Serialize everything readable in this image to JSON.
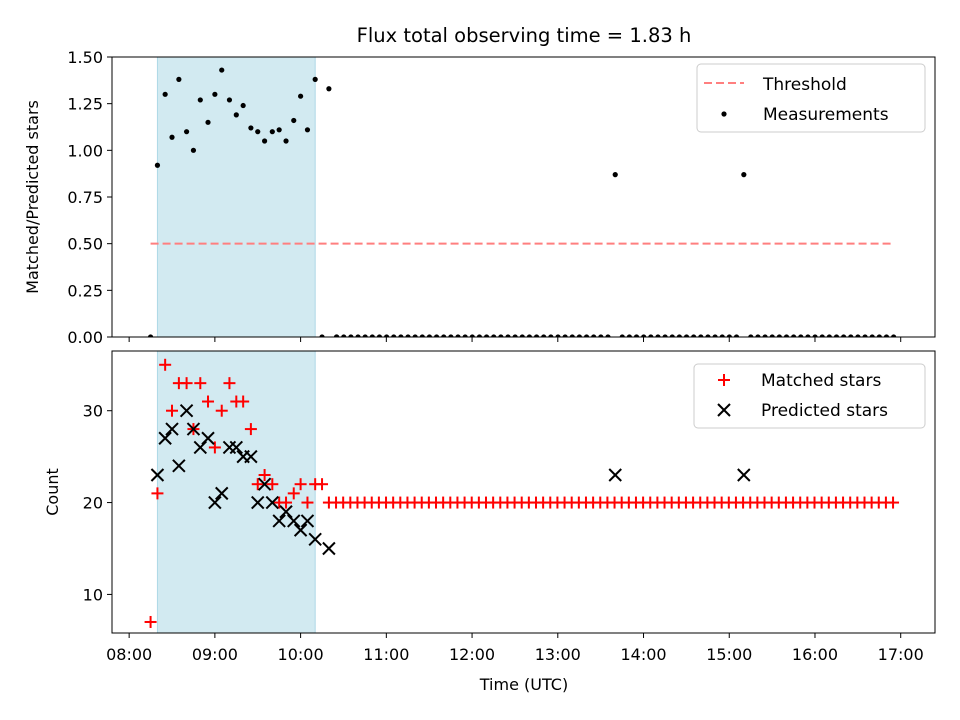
{
  "chart_data": [
    {
      "type": "scatter",
      "title": "Flux total observing time = 1.83 h",
      "ylabel": "Matched/Predicted stars",
      "xlabel": "",
      "xlim": [
        7.8,
        17.4
      ],
      "ylim": [
        0,
        1.5
      ],
      "yticks": [
        0,
        0.25,
        0.5,
        0.75,
        1.0,
        1.25,
        1.5
      ],
      "ytick_labels": [
        "0.00",
        "0.25",
        "0.50",
        "0.75",
        "1.00",
        "1.25",
        "1.50"
      ],
      "highlight_span": [
        8.33,
        10.17
      ],
      "highlight_color": "#add8e6",
      "legend_position": "upper right",
      "threshold": {
        "name": "Threshold",
        "y": 0.5,
        "x_range": [
          8.25,
          16.92
        ],
        "color": "#ff7f7f",
        "style": "dashed"
      },
      "series": [
        {
          "name": "Measurements",
          "marker": "dot",
          "color": "#000000",
          "x": [
            8.25,
            8.33,
            8.42,
            8.5,
            8.58,
            8.67,
            8.75,
            8.83,
            8.92,
            9.0,
            9.08,
            9.17,
            9.25,
            9.33,
            9.42,
            9.5,
            9.58,
            9.67,
            9.75,
            9.83,
            9.92,
            10.0,
            10.08,
            10.17,
            10.25,
            10.33,
            10.42,
            13.67,
            15.17
          ],
          "y": [
            0.0,
            0.92,
            1.3,
            1.07,
            1.38,
            1.1,
            1.0,
            1.27,
            1.15,
            1.3,
            1.43,
            1.27,
            1.19,
            1.24,
            1.12,
            1.1,
            1.05,
            1.1,
            1.11,
            1.05,
            1.16,
            1.29,
            1.11,
            1.38,
            0.0,
            1.33,
            0.0,
            0.87,
            0.87
          ],
          "zero_run": {
            "x_start": 10.42,
            "x_end": 16.92,
            "step": 0.0833,
            "y": 0.0,
            "except": [
              13.67,
              15.17
            ]
          }
        }
      ]
    },
    {
      "type": "scatter",
      "title": "",
      "xlabel": "Time (UTC)",
      "ylabel": "Count",
      "xlim": [
        7.8,
        17.4
      ],
      "ylim": [
        5.8,
        36.5
      ],
      "yticks": [
        10,
        20,
        30
      ],
      "ytick_labels": [
        "10",
        "20",
        "30"
      ],
      "xticks": [
        8,
        9,
        10,
        11,
        12,
        13,
        14,
        15,
        16,
        17
      ],
      "xtick_labels": [
        "08:00",
        "09:00",
        "10:00",
        "11:00",
        "12:00",
        "13:00",
        "14:00",
        "15:00",
        "16:00",
        "17:00"
      ],
      "highlight_span": [
        8.33,
        10.17
      ],
      "highlight_color": "#add8e6",
      "legend_position": "upper right",
      "series": [
        {
          "name": "Matched stars",
          "marker": "plus",
          "color": "#ff0000",
          "x": [
            8.25,
            8.33,
            8.42,
            8.5,
            8.58,
            8.67,
            8.75,
            8.83,
            8.92,
            9.0,
            9.08,
            9.17,
            9.25,
            9.33,
            9.42,
            9.5,
            9.58,
            9.67,
            9.75,
            9.83,
            9.92,
            10.0,
            10.08,
            10.17,
            10.25
          ],
          "y": [
            7,
            21,
            35,
            30,
            33,
            33,
            28,
            33,
            31,
            26,
            30,
            33,
            31,
            31,
            28,
            22,
            23,
            22,
            20,
            20,
            21,
            22,
            20,
            22,
            22
          ],
          "constant_run": {
            "x_start": 10.33,
            "x_end": 16.92,
            "step": 0.0833,
            "y": 20
          }
        },
        {
          "name": "Predicted stars",
          "marker": "x",
          "color": "#000000",
          "x": [
            8.33,
            8.42,
            8.5,
            8.58,
            8.67,
            8.75,
            8.83,
            8.92,
            9.0,
            9.08,
            9.17,
            9.25,
            9.33,
            9.42,
            9.5,
            9.58,
            9.67,
            9.75,
            9.83,
            9.92,
            10.0,
            10.08,
            10.17,
            10.33,
            13.67,
            15.17
          ],
          "y": [
            23,
            27,
            28,
            24,
            30,
            28,
            26,
            27,
            20,
            21,
            26,
            26,
            25,
            25,
            20,
            22,
            20,
            18,
            19,
            18,
            17,
            18,
            16,
            15,
            23,
            23
          ]
        }
      ]
    }
  ]
}
